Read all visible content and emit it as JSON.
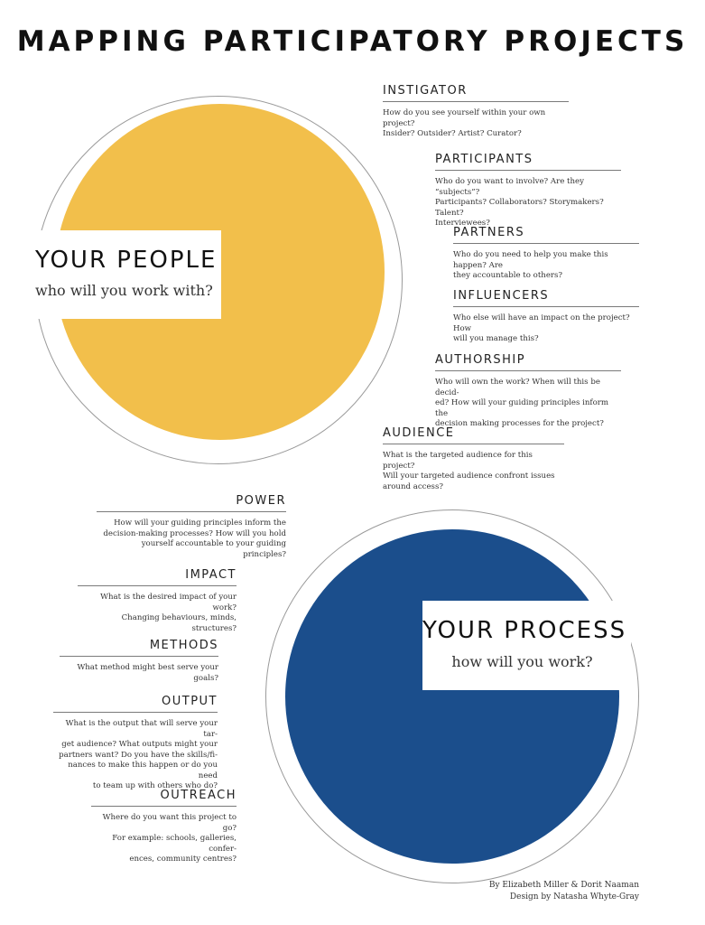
{
  "title": "MAPPING PARTICIPATORY PROJECTS",
  "colors": {
    "people": "#f2bf4b",
    "process": "#1b4e8c",
    "ring": "#9a9a9a"
  },
  "people": {
    "heading": "YOUR PEOPLE",
    "subheading": "who will you work with?",
    "sections": [
      {
        "heading": "INSTIGATOR",
        "lines": [
          "How do you see yourself within your own project?",
          "Insider? Outsider? Artist? Curator?"
        ]
      },
      {
        "heading": "PARTICIPANTS",
        "lines": [
          "Who do you want to involve? Are they “subjects”?",
          "Participants? Collaborators? Storymakers? Talent?",
          "Interviewees?"
        ]
      },
      {
        "heading": "PARTNERS",
        "lines": [
          "Who do you need to help you make this happen? Are",
          "they accountable to others?"
        ]
      },
      {
        "heading": "INFLUENCERS",
        "lines": [
          "Who else will have an impact on the project? How",
          "will you manage this?"
        ]
      },
      {
        "heading": "AUTHORSHIP",
        "lines": [
          "Who will own the work? When will this be decid-",
          "ed? How will your guiding principles inform the",
          "decision making processes for the project?"
        ]
      },
      {
        "heading": "AUDIENCE",
        "lines": [
          "What is the targeted audience for this project?",
          "Will your targeted audience confront issues",
          "around access?"
        ]
      }
    ]
  },
  "process": {
    "heading": "YOUR PROCESS",
    "subheading": "how will you work?",
    "sections": [
      {
        "heading": "POWER",
        "lines": [
          "How will your guiding principles inform the",
          "decision-making processes? How will you hold",
          "yourself accountable to your guiding principles?"
        ]
      },
      {
        "heading": "IMPACT",
        "lines": [
          "What is the desired impact of your work?",
          "Changing behaviours, minds, structures?"
        ]
      },
      {
        "heading": "METHODS",
        "lines": [
          "What method might best serve your goals?"
        ]
      },
      {
        "heading": "OUTPUT",
        "lines": [
          "What is the output that will serve your tar-",
          "get audience? What outputs might your",
          "partners want? Do you have the skills/fi-",
          "nances to make this happen or do you need",
          "to team up with others who do?"
        ]
      },
      {
        "heading": "OUTREACH",
        "lines": [
          "Where do you want this project to go?",
          "For example: schools, galleries, confer-",
          "ences, community centres?"
        ]
      }
    ]
  },
  "credits": {
    "authors": "By Elizabeth Miller & Dorit Naaman",
    "design": "Design by Natasha Whyte-Gray"
  }
}
